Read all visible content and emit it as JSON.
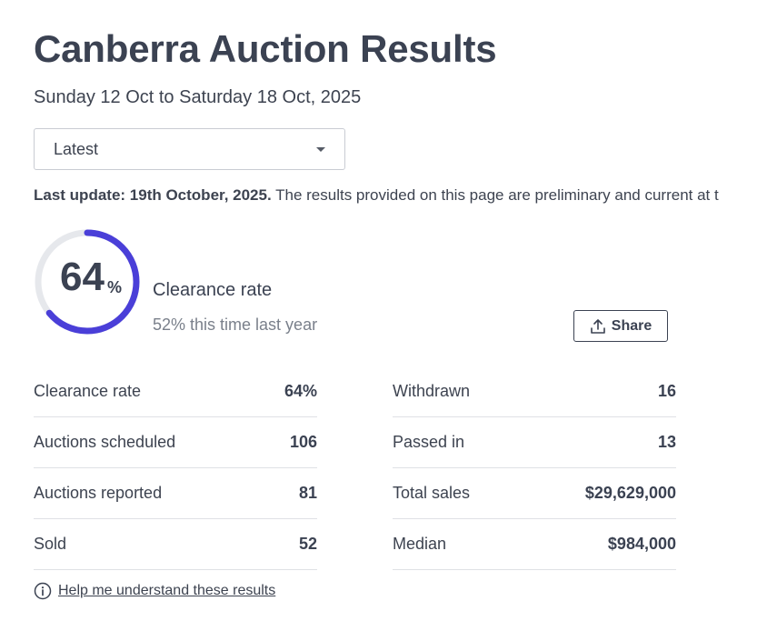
{
  "header": {
    "title": "Canberra Auction Results",
    "date_range": "Sunday 12 Oct to Saturday 18 Oct, 2025"
  },
  "period_select": {
    "value": "Latest"
  },
  "last_update": {
    "label": "Last update: 19th October, 2025.",
    "text": "The results provided on this page are preliminary and current at t"
  },
  "summary": {
    "clearance_rate_number": "64",
    "clearance_rate_percent_sign": "%",
    "clearance_rate_fraction": 0.64,
    "clearance_label": "Clearance rate",
    "last_year_text": "52% this time last year",
    "gauge_color": "#4a3fd8",
    "gauge_track_color": "#e6e8ec"
  },
  "share": {
    "label": "Share",
    "icon": "share-upload-icon"
  },
  "stats": {
    "left": [
      {
        "label": "Clearance rate",
        "value": "64%"
      },
      {
        "label": "Auctions scheduled",
        "value": "106"
      },
      {
        "label": "Auctions reported",
        "value": "81"
      },
      {
        "label": "Sold",
        "value": "52"
      }
    ],
    "right": [
      {
        "label": "Withdrawn",
        "value": "16"
      },
      {
        "label": "Passed in",
        "value": "13"
      },
      {
        "label": "Total sales",
        "value": "$29,629,000"
      },
      {
        "label": "Median",
        "value": "$984,000"
      }
    ]
  },
  "help": {
    "label": "Help me understand these results",
    "icon": "info-circle-icon"
  }
}
